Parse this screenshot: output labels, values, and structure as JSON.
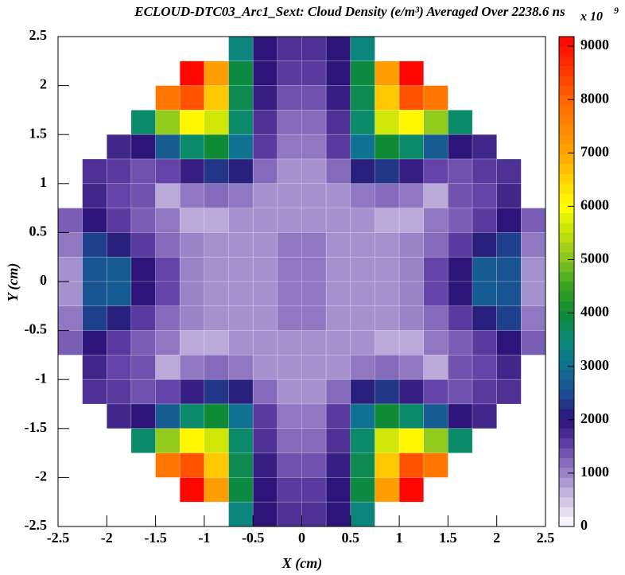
{
  "chart_data": {
    "type": "heatmap",
    "title": "ECLOUD-DTC03_Arc1_Sext: Cloud Density (e/m³) Averaged Over 2238.6 ns",
    "xlabel": "X (cm)",
    "ylabel": "Y (cm)",
    "colorbar_multiplier": "x 10",
    "colorbar_exponent": "9",
    "xlim": [
      -2.5,
      2.5
    ],
    "ylim": [
      -2.5,
      2.5
    ],
    "zlim": [
      0,
      9180
    ],
    "xticks": [
      -2.5,
      -2,
      -1.5,
      -1,
      -0.5,
      0,
      0.5,
      1,
      1.5,
      2,
      2.5
    ],
    "yticks": [
      -2.5,
      -2,
      -1.5,
      -1,
      -0.5,
      0,
      0.5,
      1,
      1.5,
      2,
      2.5
    ],
    "zticks": [
      0,
      1000,
      2000,
      3000,
      4000,
      5000,
      6000,
      7000,
      8000,
      9000
    ],
    "colorscale": [
      [
        0,
        "#ffffff"
      ],
      [
        500,
        "#cfc3e6"
      ],
      [
        1000,
        "#9a84c8"
      ],
      [
        1500,
        "#6444a8"
      ],
      [
        2000,
        "#2c1478"
      ],
      [
        2500,
        "#1c4c92"
      ],
      [
        3000,
        "#0e7290"
      ],
      [
        3500,
        "#0a8a78"
      ],
      [
        4000,
        "#0e8a34"
      ],
      [
        4500,
        "#38a420"
      ],
      [
        5000,
        "#86c420"
      ],
      [
        5500,
        "#c4e008"
      ],
      [
        6000,
        "#ffff00"
      ],
      [
        7000,
        "#ffa400"
      ],
      [
        8000,
        "#ff6400"
      ],
      [
        9180,
        "#ff0000"
      ]
    ],
    "x": [
      -2.375,
      -2.125,
      -1.875,
      -1.625,
      -1.375,
      -1.125,
      -0.875,
      -0.625,
      -0.375,
      -0.125,
      0.125,
      0.375,
      0.625,
      0.875,
      1.125,
      1.375,
      1.625,
      1.875,
      2.125,
      2.375
    ],
    "y": [
      2.375,
      2.125,
      1.875,
      1.625,
      1.375,
      1.125,
      0.875,
      0.625,
      0.375,
      0.125,
      -0.125,
      -0.375,
      -0.625,
      -0.875,
      -1.125,
      -1.375,
      -1.625,
      -1.875,
      -2.125,
      -2.375
    ],
    "values": [
      [
        null,
        null,
        null,
        null,
        null,
        null,
        null,
        3400,
        2000,
        1700,
        1700,
        2000,
        3400,
        null,
        null,
        null,
        null,
        null,
        null,
        null
      ],
      [
        null,
        null,
        null,
        null,
        null,
        9100,
        7100,
        3900,
        2000,
        1600,
        1600,
        2000,
        3900,
        7100,
        9100,
        null,
        null,
        null,
        null,
        null
      ],
      [
        null,
        null,
        null,
        null,
        7700,
        8200,
        6600,
        3800,
        1900,
        1400,
        1400,
        1900,
        3800,
        6600,
        8200,
        7700,
        null,
        null,
        null,
        null
      ],
      [
        null,
        null,
        null,
        3600,
        5100,
        6100,
        5600,
        3600,
        1700,
        1200,
        1200,
        1700,
        3600,
        5600,
        6100,
        5100,
        3600,
        null,
        null,
        null
      ],
      [
        null,
        null,
        1800,
        2000,
        2700,
        3600,
        4000,
        3000,
        1600,
        1100,
        1100,
        1600,
        3000,
        4000,
        3600,
        2700,
        2000,
        1800,
        null,
        null
      ],
      [
        null,
        1700,
        1600,
        1400,
        1500,
        1900,
        2300,
        2100,
        1200,
        900,
        900,
        1200,
        2100,
        2300,
        1900,
        1500,
        1400,
        1600,
        1700,
        null
      ],
      [
        null,
        1800,
        1500,
        1400,
        700,
        1100,
        1200,
        1100,
        900,
        900,
        900,
        900,
        1100,
        1200,
        1100,
        700,
        1400,
        1500,
        1800,
        null
      ],
      [
        1300,
        2000,
        1600,
        1300,
        1100,
        700,
        700,
        900,
        900,
        900,
        900,
        900,
        900,
        700,
        700,
        1100,
        1300,
        1600,
        2000,
        1300
      ],
      [
        1100,
        2400,
        2100,
        1600,
        1200,
        1000,
        900,
        900,
        900,
        1100,
        1100,
        900,
        900,
        900,
        1000,
        1200,
        1600,
        2100,
        2400,
        1100
      ],
      [
        900,
        2600,
        2700,
        2000,
        1500,
        1000,
        900,
        900,
        900,
        1100,
        1100,
        900,
        900,
        900,
        1000,
        1500,
        2000,
        2700,
        2600,
        900
      ],
      [
        900,
        2600,
        2700,
        2000,
        1500,
        1000,
        900,
        900,
        900,
        1100,
        1100,
        900,
        900,
        900,
        1000,
        1500,
        2000,
        2700,
        2600,
        900
      ],
      [
        1100,
        2400,
        2100,
        1600,
        1200,
        1000,
        900,
        900,
        900,
        1100,
        1100,
        900,
        900,
        900,
        1000,
        1200,
        1600,
        2100,
        2400,
        1100
      ],
      [
        1300,
        2000,
        1600,
        1300,
        1100,
        700,
        700,
        900,
        900,
        900,
        900,
        900,
        900,
        700,
        700,
        1100,
        1300,
        1600,
        2000,
        1300
      ],
      [
        null,
        1800,
        1500,
        1400,
        700,
        1100,
        1200,
        1100,
        900,
        900,
        900,
        900,
        1100,
        1200,
        1100,
        700,
        1400,
        1500,
        1800,
        null
      ],
      [
        null,
        1700,
        1600,
        1400,
        1500,
        1900,
        2300,
        2100,
        1200,
        900,
        900,
        1200,
        2100,
        2300,
        1900,
        1500,
        1400,
        1600,
        1700,
        null
      ],
      [
        null,
        null,
        1800,
        2000,
        2700,
        3600,
        4000,
        3000,
        1600,
        1100,
        1100,
        1600,
        3000,
        4000,
        3600,
        2700,
        2000,
        1800,
        null,
        null
      ],
      [
        null,
        null,
        null,
        3600,
        5100,
        6100,
        5600,
        3600,
        1700,
        1200,
        1200,
        1700,
        3600,
        5600,
        6100,
        5100,
        3600,
        null,
        null,
        null
      ],
      [
        null,
        null,
        null,
        null,
        7700,
        8200,
        6600,
        3800,
        1900,
        1400,
        1400,
        1900,
        3800,
        6600,
        8200,
        7700,
        null,
        null,
        null,
        null
      ],
      [
        null,
        null,
        null,
        null,
        null,
        9100,
        7100,
        3900,
        2000,
        1600,
        1600,
        2000,
        3900,
        7100,
        9100,
        null,
        null,
        null,
        null,
        null
      ],
      [
        null,
        null,
        null,
        null,
        null,
        null,
        null,
        3400,
        2000,
        1700,
        1700,
        2000,
        3400,
        null,
        null,
        null,
        null,
        null,
        null,
        null
      ]
    ]
  }
}
